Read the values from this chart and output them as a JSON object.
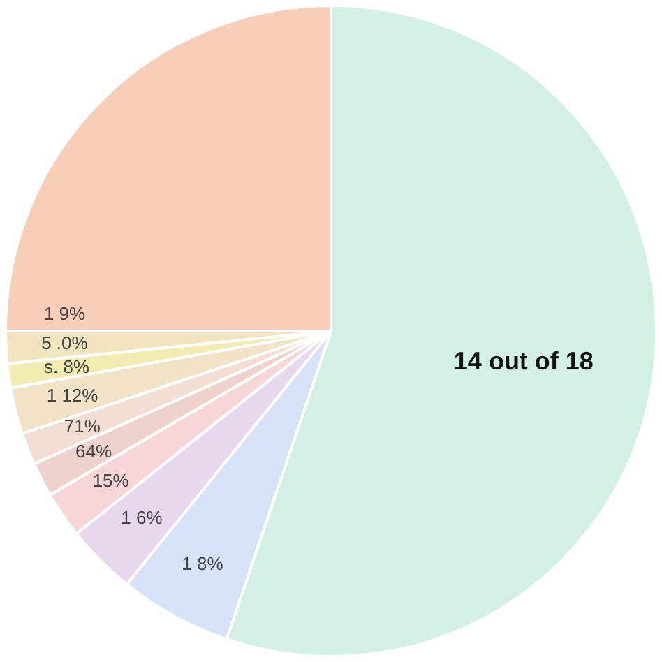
{
  "chart_data": {
    "type": "pie",
    "categories": [
      null,
      null,
      null,
      null,
      null,
      null,
      null,
      null,
      null,
      null
    ],
    "values": [
      55.2,
      5.6,
      3.5,
      2.3,
      1.7,
      1.6,
      2.3,
      1.2,
      1.6,
      25
    ],
    "colors": [
      "#d2f0e4",
      "#d6e2f8",
      "#e8d8ee",
      "#f6d6d6",
      "#f0d2cc",
      "#f4ddd2",
      "#f2e2c6",
      "#f2ecb0",
      "#f2e6c0",
      "#f8ceb8"
    ],
    "annotations": [
      "14 out of 18",
      "1 8%",
      "1 6%",
      "15%",
      "64%",
      "71%",
      "1 12%",
      "s. 8%",
      "5 .0%",
      "1 9%"
    ]
  }
}
